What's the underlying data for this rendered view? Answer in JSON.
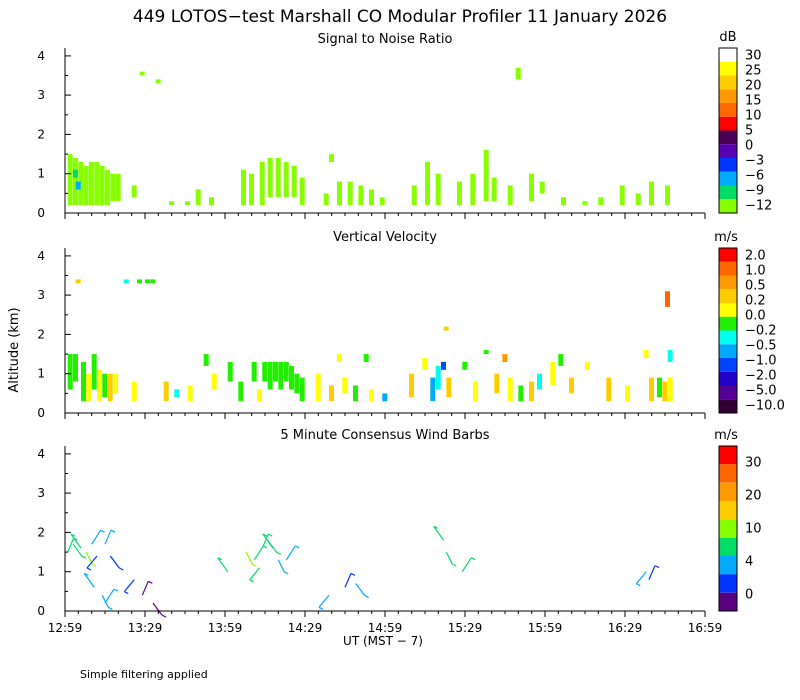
{
  "title": "449 LOTOS−test Marshall CO Modular Profiler 11 January 2026",
  "ylabel": "Altitude (km)",
  "xlabel": "UT  (MST − 7)",
  "x_ticks": [
    "12:59",
    "13:29",
    "13:59",
    "14:29",
    "14:59",
    "15:29",
    "15:59",
    "16:29",
    "16:59"
  ],
  "y_ticks": [
    "0",
    "1",
    "2",
    "3",
    "4"
  ],
  "footnote": "Simple filtering applied",
  "chart_data": [
    {
      "type": "heatmap",
      "title": "Signal to Noise Ratio",
      "units": "dB",
      "x_range": [
        "12:59",
        "16:59"
      ],
      "ylim": [
        0,
        4.2
      ],
      "colorbar": {
        "labels": [
          "30",
          "25",
          "20",
          "15",
          "10",
          "5",
          "0",
          "−3",
          "−6",
          "−9",
          "−12"
        ],
        "colors": [
          "#ffffff",
          "#ffff00",
          "#ffcc00",
          "#ff9900",
          "#ff6600",
          "#ff0000",
          "#4b0055",
          "#5a00b4",
          "#0033ff",
          "#00aaff",
          "#00dd66",
          "#88ff00"
        ]
      },
      "cells": [
        {
          "t": "13:00",
          "z0": 0.2,
          "z1": 1.5,
          "c": 11
        },
        {
          "t": "13:02",
          "z0": 0.2,
          "z1": 1.4,
          "c": 11
        },
        {
          "t": "13:04",
          "z0": 0.2,
          "z1": 1.3,
          "c": 11
        },
        {
          "t": "13:06",
          "z0": 0.2,
          "z1": 1.2,
          "c": 11
        },
        {
          "t": "13:08",
          "z0": 0.2,
          "z1": 1.3,
          "c": 11
        },
        {
          "t": "13:10",
          "z0": 0.2,
          "z1": 1.3,
          "c": 11
        },
        {
          "t": "13:12",
          "z0": 0.2,
          "z1": 1.2,
          "c": 11
        },
        {
          "t": "13:14",
          "z0": 0.2,
          "z1": 1.1,
          "c": 11
        },
        {
          "t": "13:16",
          "z0": 0.3,
          "z1": 1.0,
          "c": 11
        },
        {
          "t": "13:18",
          "z0": 0.3,
          "z1": 1.0,
          "c": 11
        },
        {
          "t": "13:02",
          "z0": 0.9,
          "z1": 1.1,
          "c": 10
        },
        {
          "t": "13:03",
          "z0": 0.6,
          "z1": 0.8,
          "c": 9
        },
        {
          "t": "13:24",
          "z0": 0.4,
          "z1": 0.7,
          "c": 11
        },
        {
          "t": "13:33",
          "z0": 3.3,
          "z1": 3.4,
          "c": 11
        },
        {
          "t": "13:27",
          "z0": 3.5,
          "z1": 3.6,
          "c": 11
        },
        {
          "t": "13:38",
          "z0": 0.2,
          "z1": 0.3,
          "c": 11
        },
        {
          "t": "13:44",
          "z0": 0.2,
          "z1": 0.3,
          "c": 11
        },
        {
          "t": "13:48",
          "z0": 0.2,
          "z1": 0.6,
          "c": 11
        },
        {
          "t": "13:53",
          "z0": 0.2,
          "z1": 0.4,
          "c": 11
        },
        {
          "t": "14:05",
          "z0": 0.2,
          "z1": 1.1,
          "c": 11
        },
        {
          "t": "14:08",
          "z0": 0.2,
          "z1": 1.0,
          "c": 11
        },
        {
          "t": "14:12",
          "z0": 0.2,
          "z1": 1.3,
          "c": 11
        },
        {
          "t": "14:15",
          "z0": 0.4,
          "z1": 1.4,
          "c": 11
        },
        {
          "t": "14:18",
          "z0": 0.4,
          "z1": 1.4,
          "c": 11
        },
        {
          "t": "14:21",
          "z0": 0.4,
          "z1": 1.3,
          "c": 11
        },
        {
          "t": "14:24",
          "z0": 0.4,
          "z1": 1.2,
          "c": 11
        },
        {
          "t": "14:27",
          "z0": 0.2,
          "z1": 0.9,
          "c": 11
        },
        {
          "t": "14:36",
          "z0": 0.2,
          "z1": 0.5,
          "c": 11
        },
        {
          "t": "14:38",
          "z0": 1.3,
          "z1": 1.5,
          "c": 11
        },
        {
          "t": "14:41",
          "z0": 0.2,
          "z1": 0.8,
          "c": 11
        },
        {
          "t": "14:45",
          "z0": 0.2,
          "z1": 0.8,
          "c": 11
        },
        {
          "t": "14:49",
          "z0": 0.2,
          "z1": 0.7,
          "c": 11
        },
        {
          "t": "14:53",
          "z0": 0.2,
          "z1": 0.6,
          "c": 11
        },
        {
          "t": "14:57",
          "z0": 0.2,
          "z1": 0.4,
          "c": 11
        },
        {
          "t": "15:09",
          "z0": 0.2,
          "z1": 0.7,
          "c": 11
        },
        {
          "t": "15:14",
          "z0": 0.2,
          "z1": 1.3,
          "c": 11
        },
        {
          "t": "15:18",
          "z0": 0.2,
          "z1": 1.0,
          "c": 11
        },
        {
          "t": "15:26",
          "z0": 0.2,
          "z1": 0.8,
          "c": 11
        },
        {
          "t": "15:31",
          "z0": 0.2,
          "z1": 1.0,
          "c": 11
        },
        {
          "t": "15:36",
          "z0": 0.3,
          "z1": 1.6,
          "c": 11
        },
        {
          "t": "15:39",
          "z0": 0.3,
          "z1": 0.9,
          "c": 11
        },
        {
          "t": "15:45",
          "z0": 0.2,
          "z1": 0.7,
          "c": 11
        },
        {
          "t": "15:48",
          "z0": 3.4,
          "z1": 3.7,
          "c": 11
        },
        {
          "t": "15:53",
          "z0": 0.3,
          "z1": 1.0,
          "c": 11
        },
        {
          "t": "15:57",
          "z0": 0.5,
          "z1": 0.8,
          "c": 11
        },
        {
          "t": "16:05",
          "z0": 0.2,
          "z1": 0.4,
          "c": 11
        },
        {
          "t": "16:13",
          "z0": 0.2,
          "z1": 0.3,
          "c": 11
        },
        {
          "t": "16:19",
          "z0": 0.2,
          "z1": 0.4,
          "c": 11
        },
        {
          "t": "16:27",
          "z0": 0.2,
          "z1": 0.7,
          "c": 11
        },
        {
          "t": "16:33",
          "z0": 0.2,
          "z1": 0.5,
          "c": 11
        },
        {
          "t": "16:38",
          "z0": 0.2,
          "z1": 0.8,
          "c": 11
        },
        {
          "t": "16:44",
          "z0": 0.2,
          "z1": 0.7,
          "c": 11
        }
      ]
    },
    {
      "type": "heatmap",
      "title": "Vertical Velocity",
      "units": "m/s",
      "x_range": [
        "12:59",
        "16:59"
      ],
      "ylim": [
        0,
        4.2
      ],
      "colorbar": {
        "labels": [
          "2.0",
          "1.0",
          "0.5",
          "0.2",
          "0.0",
          "−0.2",
          "−0.5",
          "−1.0",
          "−2.0",
          "−5.0",
          "−10.0"
        ],
        "colors": [
          "#ff0000",
          "#ff6600",
          "#ff9900",
          "#ffcc00",
          "#ffff00",
          "#22ee00",
          "#00ffee",
          "#00aaff",
          "#0044ff",
          "#2200cc",
          "#550099",
          "#330033"
        ]
      },
      "cells": [
        {
          "t": "13:00",
          "z0": 0.6,
          "z1": 1.5,
          "c": 5
        },
        {
          "t": "13:02",
          "z0": 0.8,
          "z1": 1.5,
          "c": 5
        },
        {
          "t": "13:03",
          "z0": 3.3,
          "z1": 3.4,
          "c": 3
        },
        {
          "t": "13:05",
          "z0": 0.3,
          "z1": 1.3,
          "c": 5
        },
        {
          "t": "13:07",
          "z0": 0.3,
          "z1": 1.0,
          "c": 4
        },
        {
          "t": "13:09",
          "z0": 0.6,
          "z1": 1.5,
          "c": 5
        },
        {
          "t": "13:11",
          "z0": 0.3,
          "z1": 1.1,
          "c": 4
        },
        {
          "t": "13:13",
          "z0": 0.4,
          "z1": 1.0,
          "c": 5
        },
        {
          "t": "13:15",
          "z0": 0.3,
          "z1": 1.0,
          "c": 3
        },
        {
          "t": "13:17",
          "z0": 0.5,
          "z1": 1.0,
          "c": 4
        },
        {
          "t": "13:21",
          "z0": 3.3,
          "z1": 3.4,
          "c": 6
        },
        {
          "t": "13:26",
          "z0": 3.3,
          "z1": 3.4,
          "c": 5
        },
        {
          "t": "13:29",
          "z0": 3.3,
          "z1": 3.4,
          "c": 5
        },
        {
          "t": "13:31",
          "z0": 3.3,
          "z1": 3.4,
          "c": 5
        },
        {
          "t": "13:24",
          "z0": 0.3,
          "z1": 0.8,
          "c": 4
        },
        {
          "t": "13:36",
          "z0": 0.3,
          "z1": 0.8,
          "c": 3
        },
        {
          "t": "13:40",
          "z0": 0.4,
          "z1": 0.6,
          "c": 6
        },
        {
          "t": "13:45",
          "z0": 0.3,
          "z1": 0.7,
          "c": 4
        },
        {
          "t": "13:51",
          "z0": 1.2,
          "z1": 1.5,
          "c": 5
        },
        {
          "t": "13:54",
          "z0": 0.6,
          "z1": 1.0,
          "c": 4
        },
        {
          "t": "14:00",
          "z0": 0.8,
          "z1": 1.3,
          "c": 5
        },
        {
          "t": "14:04",
          "z0": 0.3,
          "z1": 0.8,
          "c": 5
        },
        {
          "t": "14:09",
          "z0": 0.8,
          "z1": 1.3,
          "c": 5
        },
        {
          "t": "14:11",
          "z0": 0.3,
          "z1": 0.6,
          "c": 4
        },
        {
          "t": "14:13",
          "z0": 0.8,
          "z1": 1.3,
          "c": 5
        },
        {
          "t": "14:15",
          "z0": 0.6,
          "z1": 1.3,
          "c": 5
        },
        {
          "t": "14:17",
          "z0": 0.8,
          "z1": 1.3,
          "c": 5
        },
        {
          "t": "14:19",
          "z0": 0.6,
          "z1": 1.3,
          "c": 5
        },
        {
          "t": "14:21",
          "z0": 0.8,
          "z1": 1.3,
          "c": 5
        },
        {
          "t": "14:23",
          "z0": 0.6,
          "z1": 1.2,
          "c": 5
        },
        {
          "t": "14:25",
          "z0": 0.5,
          "z1": 1.0,
          "c": 5
        },
        {
          "t": "14:27",
          "z0": 0.3,
          "z1": 0.9,
          "c": 5
        },
        {
          "t": "14:33",
          "z0": 0.3,
          "z1": 1.0,
          "c": 4
        },
        {
          "t": "14:38",
          "z0": 0.3,
          "z1": 0.7,
          "c": 3
        },
        {
          "t": "14:41",
          "z0": 1.3,
          "z1": 1.5,
          "c": 4
        },
        {
          "t": "14:43",
          "z0": 0.5,
          "z1": 0.9,
          "c": 4
        },
        {
          "t": "14:47",
          "z0": 0.3,
          "z1": 0.7,
          "c": 5
        },
        {
          "t": "14:51",
          "z0": 1.3,
          "z1": 1.5,
          "c": 5
        },
        {
          "t": "14:53",
          "z0": 0.3,
          "z1": 0.6,
          "c": 4
        },
        {
          "t": "14:58",
          "z0": 0.3,
          "z1": 0.5,
          "c": 7
        },
        {
          "t": "15:08",
          "z0": 0.4,
          "z1": 1.0,
          "c": 3
        },
        {
          "t": "15:13",
          "z0": 1.1,
          "z1": 1.4,
          "c": 4
        },
        {
          "t": "15:16",
          "z0": 0.3,
          "z1": 0.9,
          "c": 7
        },
        {
          "t": "15:18",
          "z0": 0.6,
          "z1": 1.2,
          "c": 6
        },
        {
          "t": "15:20",
          "z0": 1.1,
          "z1": 1.3,
          "c": 8
        },
        {
          "t": "15:22",
          "z0": 0.4,
          "z1": 0.9,
          "c": 3
        },
        {
          "t": "15:21",
          "z0": 2.1,
          "z1": 2.2,
          "c": 3
        },
        {
          "t": "15:28",
          "z0": 1.1,
          "z1": 1.3,
          "c": 5
        },
        {
          "t": "15:32",
          "z0": 0.3,
          "z1": 0.8,
          "c": 4
        },
        {
          "t": "15:36",
          "z0": 1.5,
          "z1": 1.6,
          "c": 5
        },
        {
          "t": "15:40",
          "z0": 0.5,
          "z1": 1.0,
          "c": 3
        },
        {
          "t": "15:43",
          "z0": 1.3,
          "z1": 1.5,
          "c": 2
        },
        {
          "t": "15:45",
          "z0": 0.3,
          "z1": 0.9,
          "c": 4
        },
        {
          "t": "15:49",
          "z0": 0.3,
          "z1": 0.7,
          "c": 5
        },
        {
          "t": "15:53",
          "z0": 0.3,
          "z1": 0.8,
          "c": 3
        },
        {
          "t": "15:56",
          "z0": 0.6,
          "z1": 1.0,
          "c": 6
        },
        {
          "t": "16:01",
          "z0": 0.7,
          "z1": 1.3,
          "c": 4
        },
        {
          "t": "16:04",
          "z0": 1.2,
          "z1": 1.5,
          "c": 5
        },
        {
          "t": "16:08",
          "z0": 0.5,
          "z1": 0.9,
          "c": 3
        },
        {
          "t": "16:14",
          "z0": 1.1,
          "z1": 1.3,
          "c": 4
        },
        {
          "t": "16:22",
          "z0": 0.3,
          "z1": 0.9,
          "c": 3
        },
        {
          "t": "16:29",
          "z0": 0.3,
          "z1": 0.7,
          "c": 4
        },
        {
          "t": "16:36",
          "z0": 1.4,
          "z1": 1.6,
          "c": 4
        },
        {
          "t": "16:38",
          "z0": 0.3,
          "z1": 0.9,
          "c": 3
        },
        {
          "t": "16:41",
          "z0": 0.4,
          "z1": 0.9,
          "c": 5
        },
        {
          "t": "16:43",
          "z0": 0.3,
          "z1": 0.8,
          "c": 3
        },
        {
          "t": "16:44",
          "z0": 2.7,
          "z1": 3.1,
          "c": 1
        },
        {
          "t": "16:45",
          "z0": 1.3,
          "z1": 1.6,
          "c": 6
        },
        {
          "t": "16:45",
          "z0": 0.3,
          "z1": 0.9,
          "c": 4
        }
      ]
    },
    {
      "type": "scatter",
      "title": "5 Minute Consensus Wind Barbs",
      "units": "m/s",
      "x_range": [
        "12:59",
        "16:59"
      ],
      "ylim": [
        0,
        4.2
      ],
      "colorbar": {
        "labels": [
          "30",
          "20",
          "10",
          "4",
          "0"
        ],
        "colors": [
          "#ff0000",
          "#ff6600",
          "#ff9900",
          "#ffcc00",
          "#88ff00",
          "#00dd66",
          "#00aaff",
          "#0033ff",
          "#5a0080"
        ]
      },
      "barbs": [
        {
          "t": "13:00",
          "z": 1.5,
          "c": 5
        },
        {
          "t": "13:02",
          "z": 1.7,
          "c": 5
        },
        {
          "t": "13:05",
          "z": 1.6,
          "c": 5
        },
        {
          "t": "13:07",
          "z": 1.5,
          "c": 4
        },
        {
          "t": "13:09",
          "z": 1.7,
          "c": 6
        },
        {
          "t": "13:11",
          "z": 1.4,
          "c": 7
        },
        {
          "t": "13:14",
          "z": 1.7,
          "c": 6
        },
        {
          "t": "13:16",
          "z": 1.4,
          "c": 7
        },
        {
          "t": "13:10",
          "z": 0.6,
          "c": 6
        },
        {
          "t": "13:13",
          "z": 0.4,
          "c": 6
        },
        {
          "t": "13:14",
          "z": 0.2,
          "c": 6
        },
        {
          "t": "13:25",
          "z": 0.8,
          "c": 7
        },
        {
          "t": "13:28",
          "z": 0.4,
          "c": 8
        },
        {
          "t": "13:32",
          "z": 0.2,
          "c": 8
        },
        {
          "t": "14:00",
          "z": 1.0,
          "c": 5
        },
        {
          "t": "14:07",
          "z": 1.5,
          "c": 4
        },
        {
          "t": "14:10",
          "z": 1.3,
          "c": 5
        },
        {
          "t": "14:12",
          "z": 1.1,
          "c": 5
        },
        {
          "t": "14:13",
          "z": 1.6,
          "c": 5
        },
        {
          "t": "14:15",
          "z": 1.8,
          "c": 5
        },
        {
          "t": "14:17",
          "z": 1.6,
          "c": 5
        },
        {
          "t": "14:19",
          "z": 1.3,
          "c": 6
        },
        {
          "t": "14:22",
          "z": 1.3,
          "c": 6
        },
        {
          "t": "14:38",
          "z": 0.4,
          "c": 6
        },
        {
          "t": "14:44",
          "z": 0.6,
          "c": 7
        },
        {
          "t": "14:48",
          "z": 0.7,
          "c": 6
        },
        {
          "t": "15:21",
          "z": 1.8,
          "c": 5
        },
        {
          "t": "15:22",
          "z": 1.5,
          "c": 5
        },
        {
          "t": "15:28",
          "z": 1.0,
          "c": 5
        },
        {
          "t": "16:37",
          "z": 1.0,
          "c": 6
        },
        {
          "t": "16:38",
          "z": 0.8,
          "c": 7
        }
      ]
    }
  ]
}
